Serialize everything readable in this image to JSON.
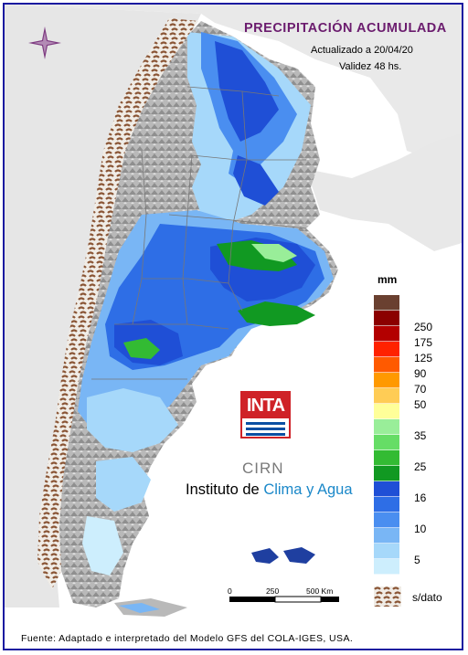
{
  "header": {
    "title": "PRECIPITACIÓN ACUMULADA",
    "updated": "Actualizado a 20/04/20",
    "validity": "Validez 48 hs."
  },
  "legend": {
    "unit": "mm",
    "levels": [
      {
        "label": "",
        "color": "#6a4030"
      },
      {
        "label": "250",
        "color": "#8b0000"
      },
      {
        "label": "175",
        "color": "#b30000"
      },
      {
        "label": "125",
        "color": "#ff2200"
      },
      {
        "label": "90",
        "color": "#ff5a00"
      },
      {
        "label": "70",
        "color": "#ff9900"
      },
      {
        "label": "50",
        "color": "#ffcc55"
      },
      {
        "label": "",
        "color": "#ffff99"
      },
      {
        "label": "35",
        "color": "#99ee99"
      },
      {
        "label": "",
        "color": "#66dd66"
      },
      {
        "label": "25",
        "color": "#33bb33"
      },
      {
        "label": "",
        "color": "#119922"
      },
      {
        "label": "16",
        "color": "#1f4fd6"
      },
      {
        "label": "",
        "color": "#2e6ee6"
      },
      {
        "label": "10",
        "color": "#4a8ef0"
      },
      {
        "label": "",
        "color": "#79b6f5"
      },
      {
        "label": "5",
        "color": "#a6d8fa"
      },
      {
        "label": "",
        "color": "#cdeefd"
      }
    ],
    "no_data_label": "s/dato"
  },
  "logos": {
    "inta": "INTA",
    "cirn": "CIRN",
    "institute_part1": "Instituto de ",
    "institute_part2": "Clima y Agua"
  },
  "scale_bar": {
    "labels": [
      "0",
      "250",
      "500 Km"
    ]
  },
  "footer": {
    "source": "Fuente: Adaptado e interpretado del Modelo GFS del COLA-IGES, USA."
  }
}
